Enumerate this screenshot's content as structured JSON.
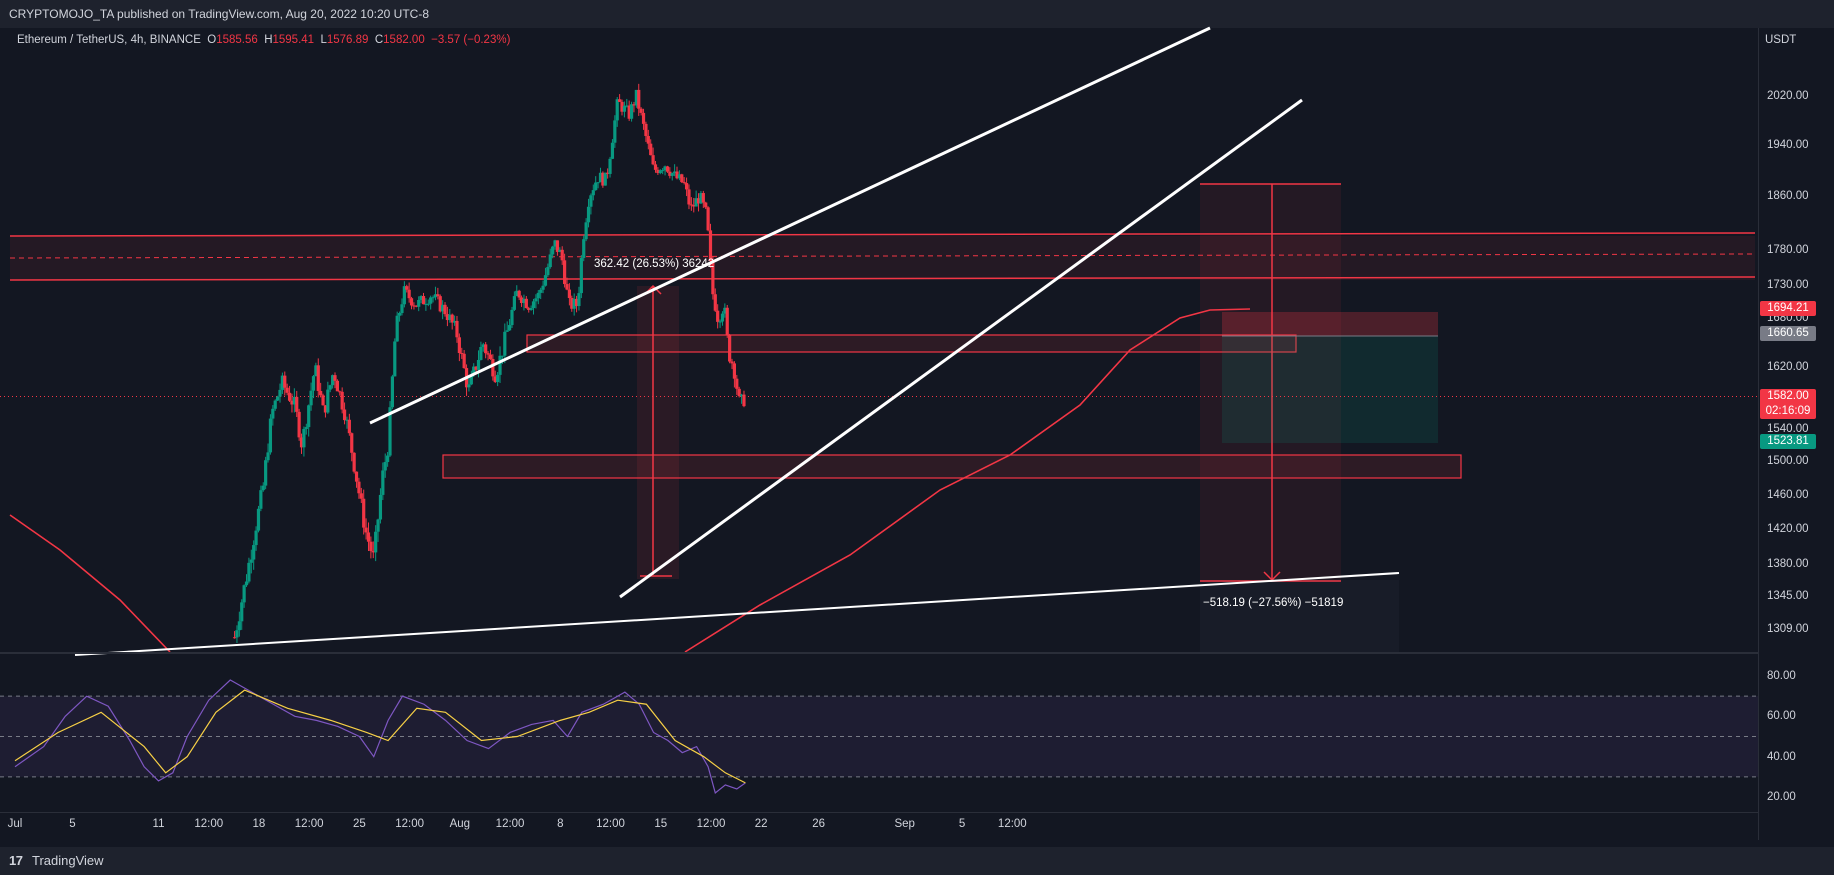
{
  "header": {
    "publisher": "CRYPTOMOJO_TA published on TradingView.com, Aug 20, 2022 10:20 UTC-8"
  },
  "legend": {
    "symbol": "Ethereum / TetherUS, 4h, BINANCE",
    "o_label": "O",
    "o_value": "1585.56",
    "h_label": "H",
    "h_value": "1595.41",
    "l_label": "L",
    "l_value": "1576.89",
    "c_label": "C",
    "c_value": "1582.00",
    "change": "−3.57 (−0.23%)"
  },
  "footer": {
    "logo": "17",
    "brand": "TradingView"
  },
  "chart_data": {
    "type": "candlestick",
    "currency": "USDT",
    "price_axis_ticks": [
      {
        "label": "2020.00",
        "v": 2020
      },
      {
        "label": "1940.00",
        "v": 1940
      },
      {
        "label": "1860.00",
        "v": 1860
      },
      {
        "label": "1780.00",
        "v": 1780
      },
      {
        "label": "1730.00",
        "v": 1730
      },
      {
        "label": "1680.00",
        "v": 1680
      },
      {
        "label": "1620.00",
        "v": 1620
      },
      {
        "label": "1540.00",
        "v": 1540
      },
      {
        "label": "1500.00",
        "v": 1500
      },
      {
        "label": "1460.00",
        "v": 1460
      },
      {
        "label": "1420.00",
        "v": 1420
      },
      {
        "label": "1380.00",
        "v": 1380
      },
      {
        "label": "1345.00",
        "v": 1345
      },
      {
        "label": "1309.00",
        "v": 1309
      }
    ],
    "time_axis_labels": [
      {
        "label": "Jul",
        "t": 0
      },
      {
        "label": "5",
        "t": 4
      },
      {
        "label": "11",
        "t": 10
      },
      {
        "label": "12:00",
        "t": 13.5
      },
      {
        "label": "18",
        "t": 17
      },
      {
        "label": "12:00",
        "t": 20.5
      },
      {
        "label": "25",
        "t": 24
      },
      {
        "label": "12:00",
        "t": 27.5
      },
      {
        "label": "Aug",
        "t": 31
      },
      {
        "label": "12:00",
        "t": 34.5
      },
      {
        "label": "8",
        "t": 38
      },
      {
        "label": "12:00",
        "t": 41.5
      },
      {
        "label": "15",
        "t": 45
      },
      {
        "label": "12:00",
        "t": 48.5
      },
      {
        "label": "22",
        "t": 52
      },
      {
        "label": "26",
        "t": 56
      },
      {
        "label": "Sep",
        "t": 62
      },
      {
        "label": "5",
        "t": 66
      },
      {
        "label": "12:00",
        "t": 69.5
      }
    ],
    "price_tags": [
      {
        "label": "1694.21",
        "v": 1694.21,
        "color": "#f23645"
      },
      {
        "label": "1660.65",
        "v": 1660.65,
        "color": "#787b86"
      },
      {
        "label": "1582.00",
        "sub": "02:16:09",
        "v": 1582,
        "color": "#f23645"
      },
      {
        "label": "1523.81",
        "v": 1523.81,
        "color": "#089981"
      }
    ],
    "last_price": 1582.0,
    "keypoints": [
      {
        "t": 15.3,
        "v": 1300
      },
      {
        "t": 16.3,
        "v": 1380
      },
      {
        "t": 17.3,
        "v": 1470
      },
      {
        "t": 17.9,
        "v": 1560
      },
      {
        "t": 18.6,
        "v": 1600
      },
      {
        "t": 19.5,
        "v": 1570
      },
      {
        "t": 20.0,
        "v": 1520
      },
      {
        "t": 20.9,
        "v": 1620
      },
      {
        "t": 21.5,
        "v": 1560
      },
      {
        "t": 22.2,
        "v": 1615
      },
      {
        "t": 23.0,
        "v": 1560
      },
      {
        "t": 23.6,
        "v": 1500
      },
      {
        "t": 24.4,
        "v": 1420
      },
      {
        "t": 25.0,
        "v": 1385
      },
      {
        "t": 25.6,
        "v": 1480
      },
      {
        "t": 26.0,
        "v": 1520
      },
      {
        "t": 26.5,
        "v": 1660
      },
      {
        "t": 27.1,
        "v": 1720
      },
      {
        "t": 28.0,
        "v": 1700
      },
      {
        "t": 29.0,
        "v": 1715
      },
      {
        "t": 30.0,
        "v": 1690
      },
      {
        "t": 30.8,
        "v": 1660
      },
      {
        "t": 31.6,
        "v": 1590
      },
      {
        "t": 32.6,
        "v": 1650
      },
      {
        "t": 33.5,
        "v": 1610
      },
      {
        "t": 34.4,
        "v": 1670
      },
      {
        "t": 35.0,
        "v": 1720
      },
      {
        "t": 35.8,
        "v": 1700
      },
      {
        "t": 36.5,
        "v": 1715
      },
      {
        "t": 37.2,
        "v": 1760
      },
      {
        "t": 37.6,
        "v": 1790
      },
      {
        "t": 38.1,
        "v": 1770
      },
      {
        "t": 38.6,
        "v": 1700
      },
      {
        "t": 39.2,
        "v": 1700
      },
      {
        "t": 39.6,
        "v": 1800
      },
      {
        "t": 40.0,
        "v": 1860
      },
      {
        "t": 40.6,
        "v": 1890
      },
      {
        "t": 41.2,
        "v": 1885
      },
      {
        "t": 42.0,
        "v": 2010
      },
      {
        "t": 42.8,
        "v": 1990
      },
      {
        "t": 43.3,
        "v": 2020
      },
      {
        "t": 43.9,
        "v": 1960
      },
      {
        "t": 44.5,
        "v": 1900
      },
      {
        "t": 45.3,
        "v": 1910
      },
      {
        "t": 46.0,
        "v": 1890
      },
      {
        "t": 46.6,
        "v": 1880
      },
      {
        "t": 47.1,
        "v": 1840
      },
      {
        "t": 47.7,
        "v": 1860
      },
      {
        "t": 48.2,
        "v": 1830
      },
      {
        "t": 48.6,
        "v": 1720
      },
      {
        "t": 49.0,
        "v": 1680
      },
      {
        "t": 49.4,
        "v": 1700
      },
      {
        "t": 49.7,
        "v": 1640
      },
      {
        "t": 50.1,
        "v": 1620
      },
      {
        "t": 50.5,
        "v": 1570
      },
      {
        "t": 50.9,
        "v": 1582
      }
    ],
    "rsi": {
      "ticks": [
        {
          "label": "80.00",
          "v": 80
        },
        {
          "label": "60.00",
          "v": 60
        },
        {
          "label": "40.00",
          "v": 40
        },
        {
          "label": "20.00",
          "v": 20
        }
      ],
      "band_upper": 70,
      "band_mid": 50,
      "band_lower": 30,
      "values": [
        {
          "t": 0,
          "v": 35
        },
        {
          "t": 2,
          "v": 45
        },
        {
          "t": 3.5,
          "v": 60
        },
        {
          "t": 5,
          "v": 70
        },
        {
          "t": 6.5,
          "v": 65
        },
        {
          "t": 8,
          "v": 48
        },
        {
          "t": 9,
          "v": 35
        },
        {
          "t": 10,
          "v": 28
        },
        {
          "t": 11,
          "v": 32
        },
        {
          "t": 12,
          "v": 50
        },
        {
          "t": 13.5,
          "v": 68
        },
        {
          "t": 15,
          "v": 78
        },
        {
          "t": 16.5,
          "v": 72
        },
        {
          "t": 18,
          "v": 66
        },
        {
          "t": 19.5,
          "v": 60
        },
        {
          "t": 21,
          "v": 58
        },
        {
          "t": 22.5,
          "v": 55
        },
        {
          "t": 24,
          "v": 50
        },
        {
          "t": 25,
          "v": 40
        },
        {
          "t": 26,
          "v": 58
        },
        {
          "t": 27,
          "v": 70
        },
        {
          "t": 28.5,
          "v": 66
        },
        {
          "t": 30,
          "v": 58
        },
        {
          "t": 31.5,
          "v": 48
        },
        {
          "t": 33,
          "v": 44
        },
        {
          "t": 34.5,
          "v": 52
        },
        {
          "t": 36,
          "v": 56
        },
        {
          "t": 37.5,
          "v": 58
        },
        {
          "t": 38.5,
          "v": 50
        },
        {
          "t": 39.5,
          "v": 62
        },
        {
          "t": 41,
          "v": 66
        },
        {
          "t": 42.5,
          "v": 72
        },
        {
          "t": 43.5,
          "v": 66
        },
        {
          "t": 44.5,
          "v": 52
        },
        {
          "t": 45.5,
          "v": 48
        },
        {
          "t": 46.5,
          "v": 42
        },
        {
          "t": 47.5,
          "v": 45
        },
        {
          "t": 48.3,
          "v": 35
        },
        {
          "t": 48.8,
          "v": 22
        },
        {
          "t": 49.5,
          "v": 26
        },
        {
          "t": 50.3,
          "v": 24
        },
        {
          "t": 50.9,
          "v": 27
        }
      ],
      "ma": [
        {
          "t": 0,
          "v": 38
        },
        {
          "t": 3,
          "v": 52
        },
        {
          "t": 6,
          "v": 62
        },
        {
          "t": 9,
          "v": 45
        },
        {
          "t": 10.5,
          "v": 32
        },
        {
          "t": 12,
          "v": 40
        },
        {
          "t": 14,
          "v": 62
        },
        {
          "t": 16,
          "v": 73
        },
        {
          "t": 19,
          "v": 64
        },
        {
          "t": 22,
          "v": 58
        },
        {
          "t": 24.5,
          "v": 52
        },
        {
          "t": 26,
          "v": 48
        },
        {
          "t": 28,
          "v": 64
        },
        {
          "t": 30,
          "v": 62
        },
        {
          "t": 32.5,
          "v": 48
        },
        {
          "t": 35,
          "v": 50
        },
        {
          "t": 38,
          "v": 58
        },
        {
          "t": 40,
          "v": 62
        },
        {
          "t": 42,
          "v": 68
        },
        {
          "t": 44,
          "v": 66
        },
        {
          "t": 46,
          "v": 48
        },
        {
          "t": 48,
          "v": 40
        },
        {
          "t": 49.5,
          "v": 32
        },
        {
          "t": 50.9,
          "v": 27
        }
      ]
    },
    "annotations": [
      {
        "text": "362.42 (26.53%) 36242"
      },
      {
        "text": "−518.19 (−27.56%) −51819"
      }
    ],
    "colors": {
      "up": "#089981",
      "down": "#f23645",
      "ma": "#f23645",
      "rsi": "#7e57c2",
      "rsi_ma": "#f7d046",
      "trendline": "#ffffff",
      "zone": "#f23645"
    }
  }
}
